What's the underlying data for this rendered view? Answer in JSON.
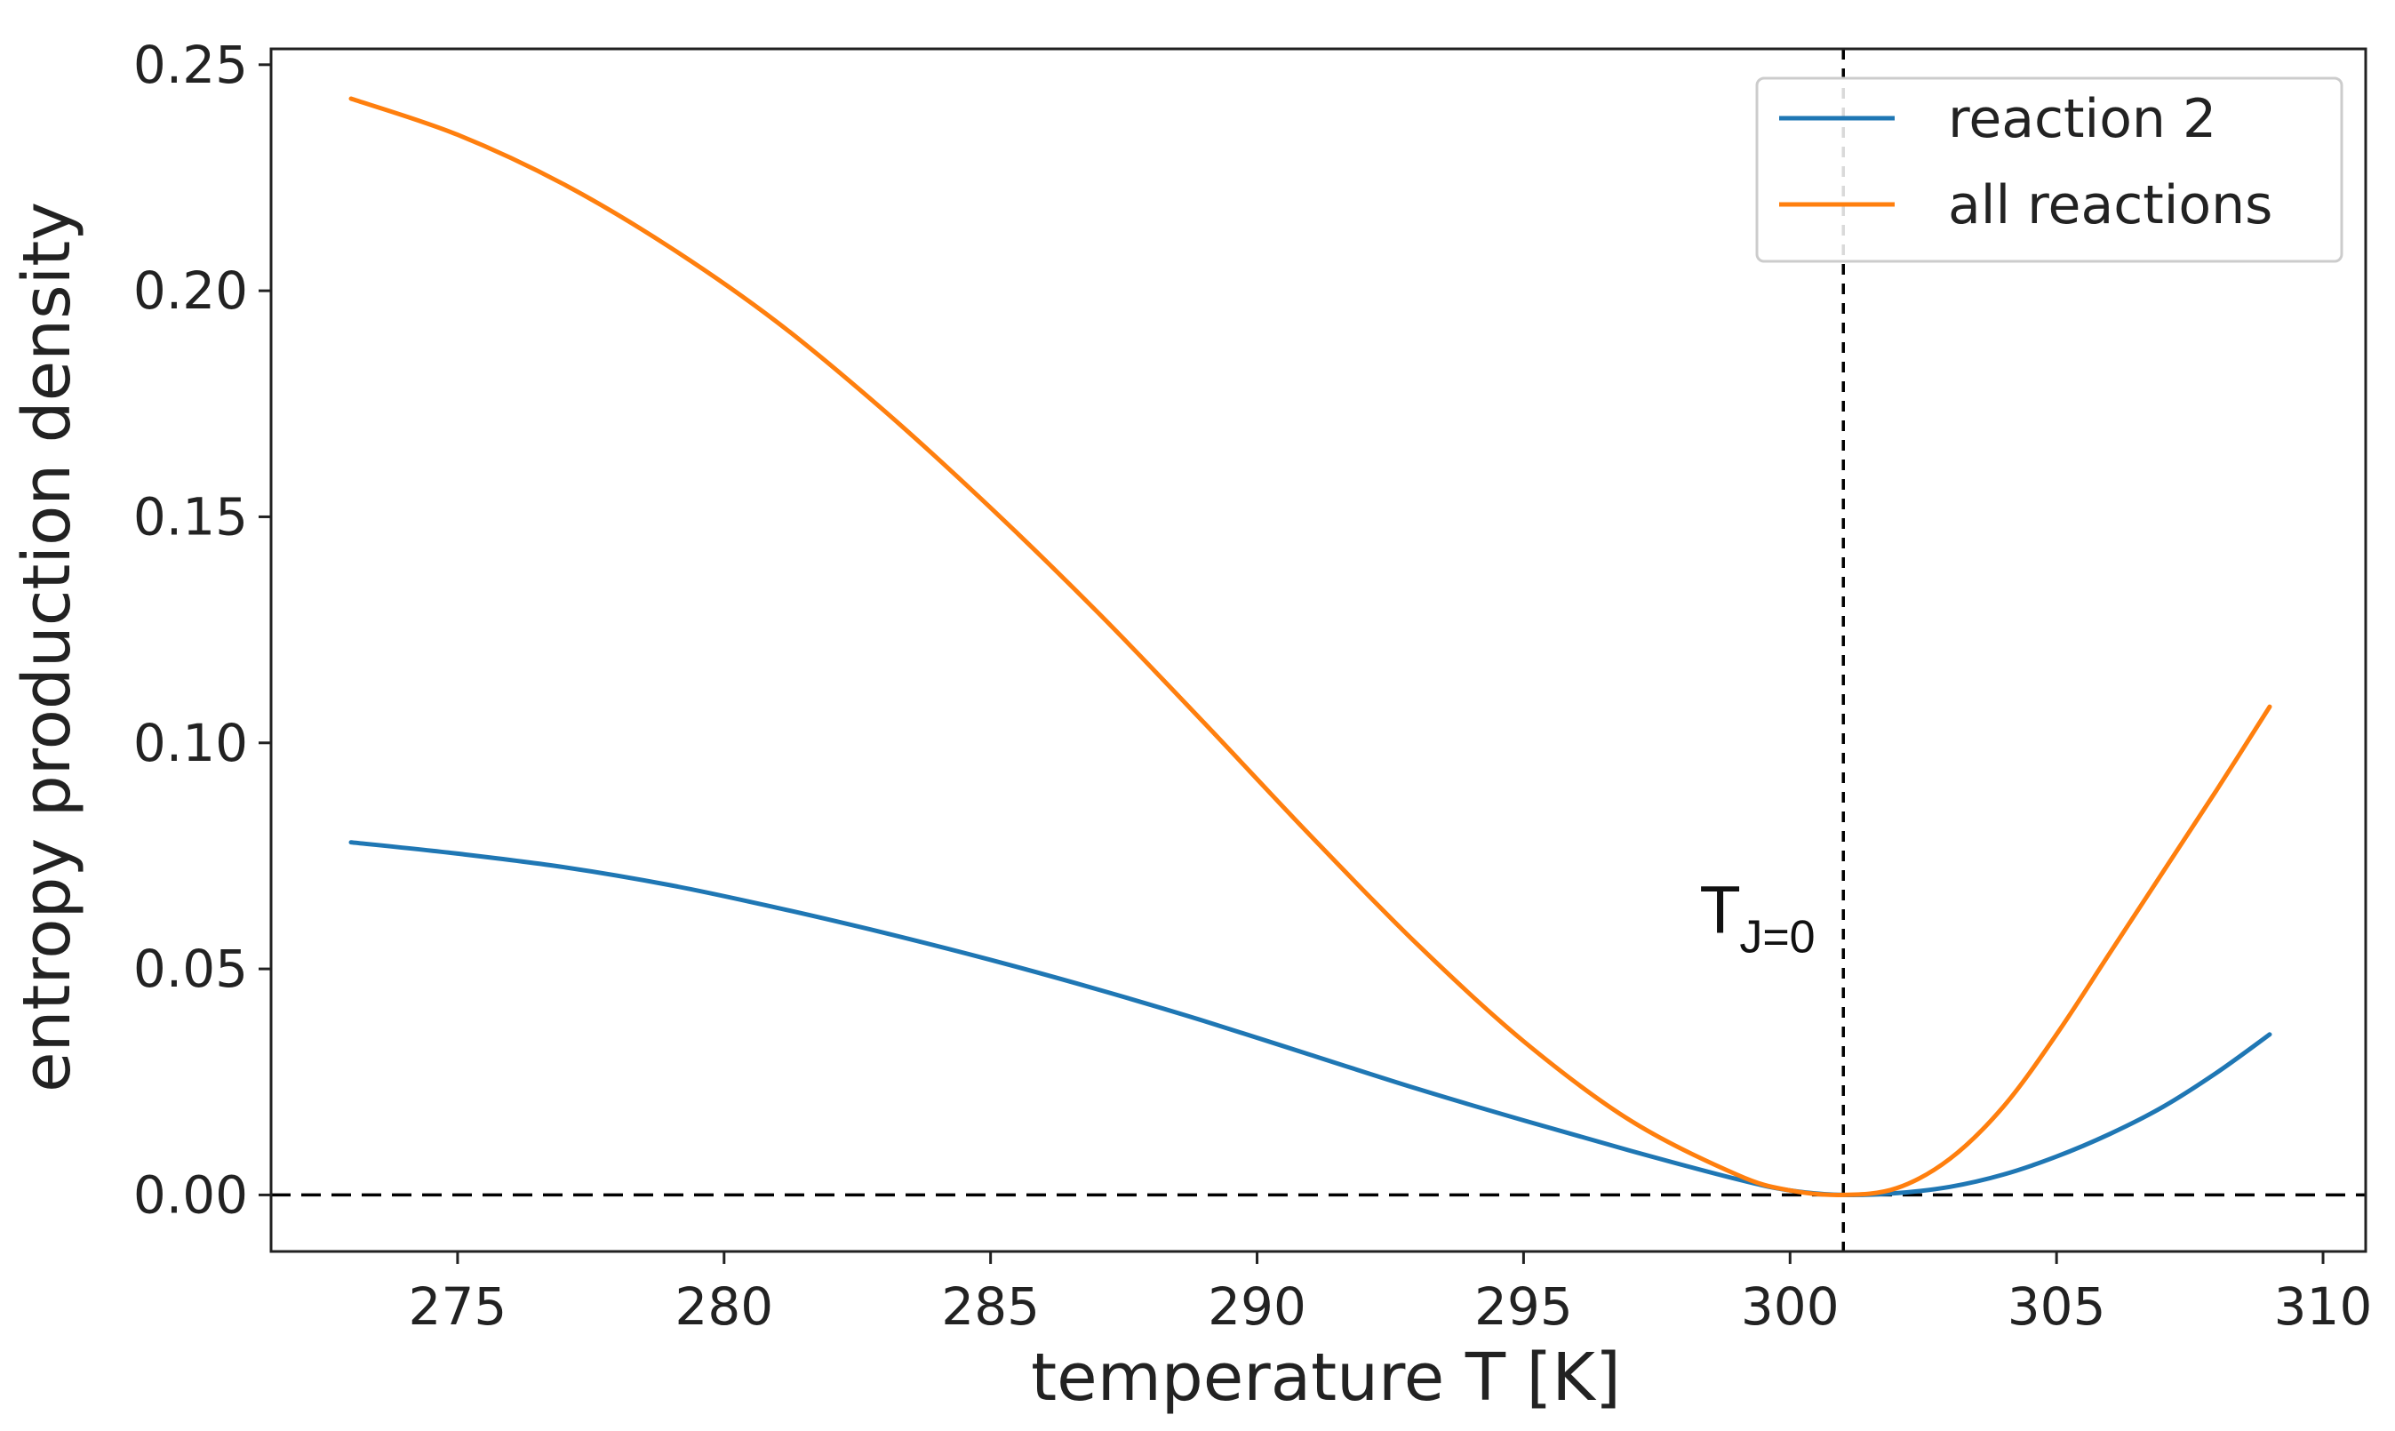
{
  "chart_data": {
    "type": "line",
    "title": "",
    "xlabel": "temperature T [K]",
    "ylabel": "entropy production density",
    "xlim": [
      271.5,
      310.8
    ],
    "ylim": [
      -0.0125,
      0.2535
    ],
    "xticks": [
      275,
      280,
      285,
      290,
      295,
      300,
      305,
      310
    ],
    "yticks": [
      0.0,
      0.05,
      0.1,
      0.15,
      0.2,
      0.25
    ],
    "xtick_labels": [
      "275",
      "280",
      "285",
      "290",
      "295",
      "300",
      "305",
      "310"
    ],
    "ytick_labels": [
      "0.00",
      "0.05",
      "0.10",
      "0.15",
      "0.20",
      "0.25"
    ],
    "grid": false,
    "legend_position": "top-right",
    "series": [
      {
        "name": "reaction 2",
        "color": "#1f77b4",
        "x": [
          273,
          275,
          277,
          279,
          281,
          283,
          285,
          287,
          289,
          291,
          293,
          295,
          297,
          299,
          300,
          301,
          302,
          303,
          304,
          305,
          306,
          307,
          308,
          309
        ],
        "y": [
          0.078,
          0.0755,
          0.0725,
          0.0685,
          0.0635,
          0.058,
          0.052,
          0.0455,
          0.0385,
          0.031,
          0.0235,
          0.0165,
          0.0098,
          0.0035,
          0.001,
          0.0,
          0.0004,
          0.0018,
          0.0045,
          0.0085,
          0.0135,
          0.0195,
          0.027,
          0.0355
        ]
      },
      {
        "name": "all reactions",
        "color": "#ff7f0e",
        "x": [
          273,
          275,
          277,
          279,
          281,
          283,
          285,
          287,
          289,
          291,
          293,
          295,
          297,
          299,
          300,
          301,
          302,
          303,
          304,
          305,
          306,
          307,
          308,
          309
        ],
        "y": [
          0.2425,
          0.2345,
          0.2235,
          0.2095,
          0.193,
          0.1735,
          0.152,
          0.129,
          0.1045,
          0.0795,
          0.0555,
          0.034,
          0.0165,
          0.0045,
          0.001,
          0.0,
          0.0015,
          0.008,
          0.0195,
          0.0355,
          0.0535,
          0.0715,
          0.0895,
          0.108
        ]
      }
    ],
    "reference_lines": [
      {
        "orientation": "horizontal",
        "value": 0.0,
        "style": "dashed",
        "color": "#000000"
      },
      {
        "orientation": "vertical",
        "value": 301,
        "style": "dashed",
        "color": "#000000"
      }
    ],
    "annotations": [
      {
        "text": "T",
        "subscript": "J=0",
        "x": 298.3,
        "y": 0.058
      }
    ]
  }
}
